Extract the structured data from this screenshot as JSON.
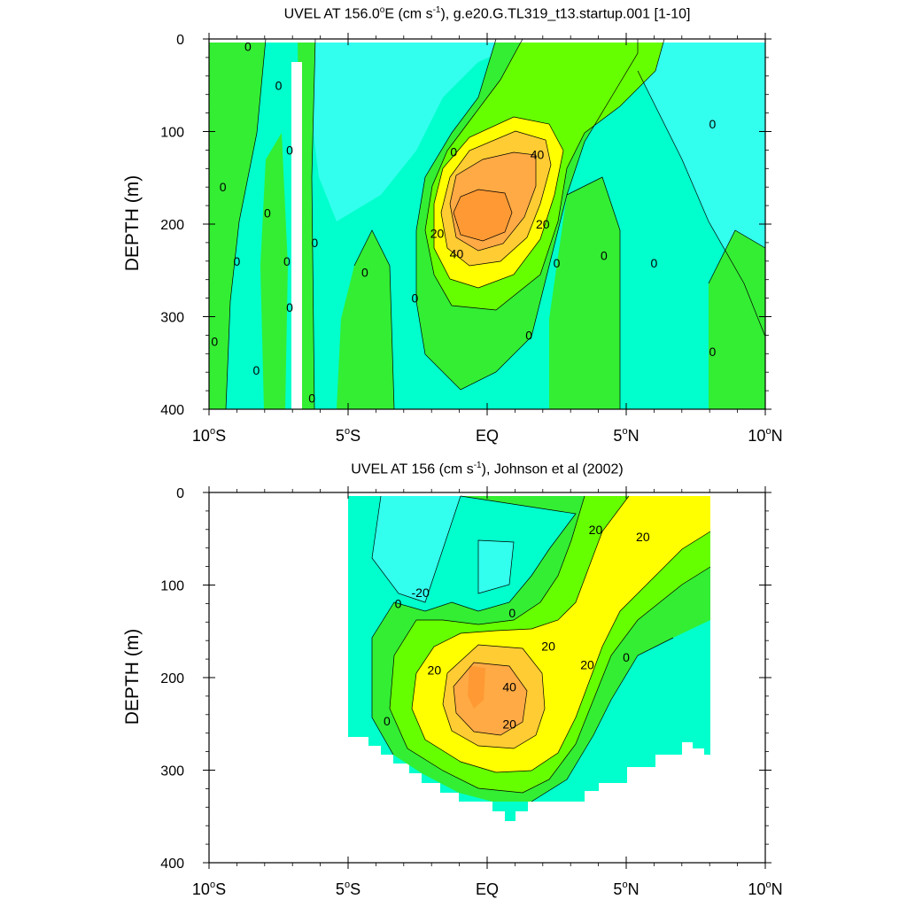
{
  "chart_data": [
    {
      "type": "contour",
      "title_parts": {
        "before": "UVEL AT 156.0",
        "deg": "o",
        "after": "E (cm s",
        "exp": "-1",
        "tail": "), g.e20.G.TL319_t13.startup.001 [1-10]"
      },
      "ylabel": "DEPTH (m)",
      "ylim": [
        400,
        0
      ],
      "yticks": [
        0,
        100,
        200,
        300,
        400
      ],
      "xlim": [
        -10,
        10
      ],
      "xticks": [
        {
          "value": -10,
          "label": "10",
          "sup": "o",
          "suffix": "S"
        },
        {
          "value": -5,
          "label": "5",
          "sup": "o",
          "suffix": "S"
        },
        {
          "value": 0,
          "label": "EQ",
          "sup": "",
          "suffix": ""
        },
        {
          "value": 5,
          "label": "5",
          "sup": "o",
          "suffix": "N"
        },
        {
          "value": 10,
          "label": "10",
          "sup": "o",
          "suffix": "N"
        }
      ],
      "contour_labels": [
        {
          "x": -8.6,
          "y": 8,
          "text": "0"
        },
        {
          "x": -7.5,
          "y": 50,
          "text": "0"
        },
        {
          "x": -9.5,
          "y": 160,
          "text": "0"
        },
        {
          "x": -9.0,
          "y": 240,
          "text": "0"
        },
        {
          "x": -7.9,
          "y": 188,
          "text": "0"
        },
        {
          "x": -7.2,
          "y": 240,
          "text": "0"
        },
        {
          "x": -7.1,
          "y": 290,
          "text": "0"
        },
        {
          "x": -7.1,
          "y": 120,
          "text": "0"
        },
        {
          "x": -6.2,
          "y": 220,
          "text": "0"
        },
        {
          "x": -8.3,
          "y": 358,
          "text": "0"
        },
        {
          "x": -9.8,
          "y": 327,
          "text": "0"
        },
        {
          "x": -6.3,
          "y": 388,
          "text": "0"
        },
        {
          "x": -4.4,
          "y": 252,
          "text": "0"
        },
        {
          "x": -2.6,
          "y": 280,
          "text": "0"
        },
        {
          "x": -1.2,
          "y": 122,
          "text": "0"
        },
        {
          "x": 1.5,
          "y": 320,
          "text": "0"
        },
        {
          "x": 2.5,
          "y": 242,
          "text": "0"
        },
        {
          "x": 4.2,
          "y": 234,
          "text": "0"
        },
        {
          "x": 6.0,
          "y": 242,
          "text": "0"
        },
        {
          "x": 8.1,
          "y": 92,
          "text": "0"
        },
        {
          "x": 8.1,
          "y": 338,
          "text": "0"
        },
        {
          "x": 1.8,
          "y": 125,
          "text": "40"
        },
        {
          "x": -1.1,
          "y": 232,
          "text": "40"
        },
        {
          "x": -1.8,
          "y": 210,
          "text": "20"
        },
        {
          "x": 2.0,
          "y": 200,
          "text": "20"
        }
      ],
      "levels": "contour fill levels approx every 10 cm s-1 from -20 to 60",
      "colors": {
        "below_-10": "#33ffee",
        "-10_0": "#00ffcc",
        "0_10": "#33ee33",
        "10_20": "#66ff00",
        "20_30": "#ffff00",
        "30_40": "#ffcc33",
        "40_50": "#ffaa44",
        "50_60": "#ff9933"
      }
    },
    {
      "type": "contour",
      "title_parts": {
        "before": "UVEL AT 156 (cm s",
        "exp": "-1",
        "after": "), Johnson et al (2002)"
      },
      "ylabel": "DEPTH (m)",
      "ylim": [
        400,
        0
      ],
      "yticks": [
        0,
        100,
        200,
        300,
        400
      ],
      "xlim": [
        -10,
        10
      ],
      "xticks": [
        {
          "value": -10,
          "label": "10",
          "sup": "o",
          "suffix": "S"
        },
        {
          "value": -5,
          "label": "5",
          "sup": "o",
          "suffix": "S"
        },
        {
          "value": 0,
          "label": "EQ",
          "sup": "",
          "suffix": ""
        },
        {
          "value": 5,
          "label": "5",
          "sup": "o",
          "suffix": "N"
        },
        {
          "value": 10,
          "label": "10",
          "sup": "o",
          "suffix": "N"
        }
      ],
      "contour_labels": [
        {
          "x": 3.9,
          "y": 40,
          "text": "20"
        },
        {
          "x": 5.6,
          "y": 48,
          "text": "20"
        },
        {
          "x": -2.4,
          "y": 108,
          "text": "-20"
        },
        {
          "x": -3.2,
          "y": 120,
          "text": "0"
        },
        {
          "x": 0.9,
          "y": 130,
          "text": "0"
        },
        {
          "x": 2.2,
          "y": 166,
          "text": "20"
        },
        {
          "x": -1.9,
          "y": 192,
          "text": "20"
        },
        {
          "x": 3.6,
          "y": 186,
          "text": "20"
        },
        {
          "x": 5.0,
          "y": 178,
          "text": "0"
        },
        {
          "x": 0.8,
          "y": 210,
          "text": "40"
        },
        {
          "x": 0.8,
          "y": 250,
          "text": "20"
        },
        {
          "x": -3.6,
          "y": 247,
          "text": "0"
        }
      ],
      "data_extent": {
        "x": [
          -5,
          8
        ],
        "y": [
          0,
          355
        ]
      }
    }
  ]
}
